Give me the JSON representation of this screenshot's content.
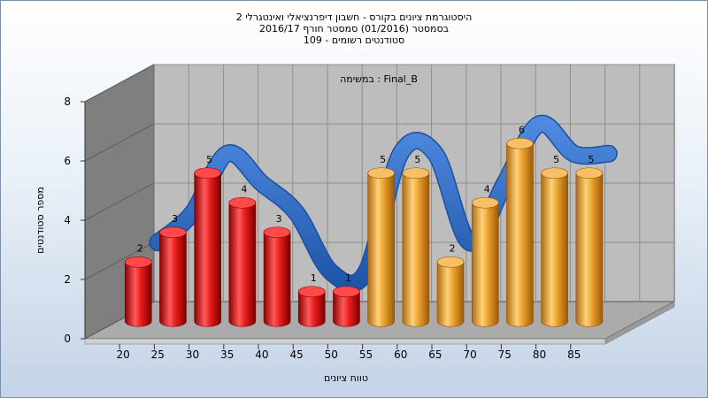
{
  "title": {
    "line1": "היסטוגרמת ציונים בקורס - חשבון דיפרנציאלי ואינטגרלי 2",
    "line2": "בסמסטר  (01/2016)  סמסטר חורף 2016/17",
    "line3": "סטודנטים רשומים - 109"
  },
  "chart_data": {
    "type": "bar",
    "annotation": "במשימה : Final_B",
    "xlabel": "טווח ציונים",
    "ylabel": "מספר סטודנטים",
    "ylim": [
      0,
      8
    ],
    "yticks": [
      0,
      2,
      4,
      6,
      8
    ],
    "categories": [
      "20",
      "25",
      "30",
      "35",
      "40",
      "45",
      "50",
      "55",
      "60",
      "65",
      "70",
      "75",
      "80",
      "85"
    ],
    "values": [
      2,
      3,
      5,
      4,
      3,
      1,
      1,
      5,
      5,
      2,
      4,
      6,
      5,
      5
    ],
    "bar_colors": [
      "red",
      "red",
      "red",
      "red",
      "red",
      "red",
      "red",
      "orange",
      "orange",
      "orange",
      "orange",
      "orange",
      "orange",
      "orange"
    ],
    "grid": true,
    "trend_line": true,
    "colors": {
      "red_bar": "#e81c1c",
      "orange_bar": "#eca22e",
      "trend": "#2f6bc4",
      "wall_back": "#bdbdbd",
      "wall_side": "#7f7f7f",
      "floor": "#aaaaaa"
    }
  }
}
